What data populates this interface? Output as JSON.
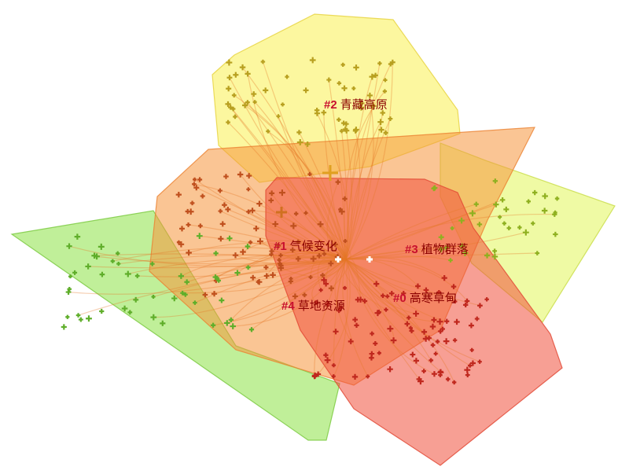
{
  "clusters": [
    {
      "id": "#0",
      "label": "高寒草甸"
    },
    {
      "id": "#1",
      "label": "气候变化"
    },
    {
      "id": "#2",
      "label": "青藏高原"
    },
    {
      "id": "#3",
      "label": "植物群落"
    },
    {
      "id": "#4",
      "label": "草地资源"
    }
  ]
}
